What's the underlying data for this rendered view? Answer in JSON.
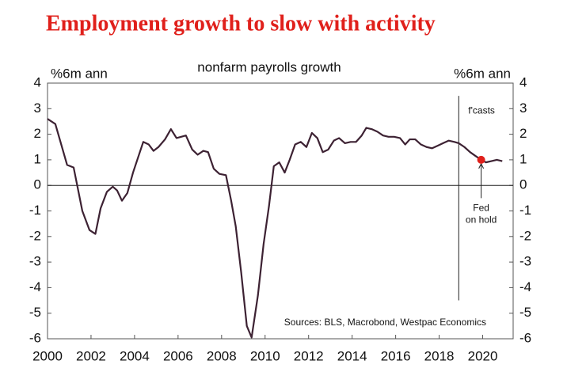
{
  "chart_data": {
    "type": "line",
    "title": "Employment growth to slow with activity",
    "subtitle": "nonfarm payrolls growth",
    "ylabel": "%6m ann",
    "y2label": "%6m ann",
    "source": "Sources: BLS, Macrobond, Westpac Economics",
    "x": [
      2000.0,
      2000.36,
      2000.9,
      2001.2,
      2001.6,
      2001.93,
      2002.2,
      2002.44,
      2002.73,
      2003.0,
      2003.2,
      2003.42,
      2003.67,
      2003.93,
      2004.4,
      2004.65,
      2004.87,
      2005.1,
      2005.4,
      2005.67,
      2005.93,
      2006.36,
      2006.65,
      2006.9,
      2007.16,
      2007.38,
      2007.64,
      2007.9,
      2008.2,
      2008.44,
      2008.65,
      2008.9,
      2009.16,
      2009.38,
      2009.67,
      2009.93,
      2010.18,
      2010.4,
      2010.65,
      2010.9,
      2011.13,
      2011.38,
      2011.64,
      2011.9,
      2012.15,
      2012.4,
      2012.65,
      2012.9,
      2013.16,
      2013.4,
      2013.67,
      2013.93,
      2014.18,
      2014.44,
      2014.65,
      2014.9,
      2015.16,
      2015.42,
      2015.67,
      2015.93,
      2016.2,
      2016.44,
      2016.65,
      2016.9,
      2017.16,
      2017.42,
      2017.67,
      2017.93,
      2018.18,
      2018.44,
      2018.7,
      2018.9,
      2019.16,
      2019.42,
      2019.67,
      2019.93,
      2020.15,
      2020.4,
      2020.65,
      2020.9
    ],
    "series": [
      {
        "name": "nonfarm payrolls growth",
        "color": "#3d2233",
        "values": [
          2.6,
          2.4,
          0.8,
          0.7,
          -1.0,
          -1.75,
          -1.9,
          -0.9,
          -0.25,
          -0.05,
          -0.2,
          -0.6,
          -0.3,
          0.5,
          1.7,
          1.6,
          1.35,
          1.5,
          1.8,
          2.2,
          1.85,
          1.95,
          1.4,
          1.2,
          1.35,
          1.3,
          0.65,
          0.45,
          0.4,
          -0.6,
          -1.6,
          -3.4,
          -5.5,
          -5.95,
          -4.3,
          -2.3,
          -0.8,
          0.75,
          0.9,
          0.5,
          1.0,
          1.6,
          1.7,
          1.5,
          2.05,
          1.85,
          1.3,
          1.4,
          1.75,
          1.85,
          1.65,
          1.7,
          1.7,
          1.95,
          2.25,
          2.2,
          2.1,
          1.95,
          1.9,
          1.9,
          1.85,
          1.6,
          1.8,
          1.8,
          1.6,
          1.5,
          1.45,
          1.55,
          1.65,
          1.75,
          1.7,
          1.65,
          1.5,
          1.3,
          1.15,
          1.0,
          0.9,
          0.95,
          1.0,
          0.95
        ]
      }
    ],
    "xlim": [
      2000,
      2021.4
    ],
    "xticks": [
      2000,
      2002,
      2004,
      2006,
      2008,
      2010,
      2012,
      2014,
      2016,
      2018,
      2020
    ],
    "ylim": [
      -6,
      4
    ],
    "yticks": [
      -6,
      -5,
      -4,
      -3,
      -2,
      -1,
      0,
      1,
      2,
      3,
      4
    ],
    "y2lim": [
      -6,
      4
    ],
    "y2ticks": [
      -6,
      -5,
      -4,
      -3,
      -2,
      -1,
      0,
      1,
      2,
      3,
      4
    ],
    "forecast_line": {
      "x": 2018.9,
      "y": [
        -4.5,
        3.5
      ],
      "label": "f'casts"
    },
    "highlight": {
      "x": 2019.93,
      "y": 1.0,
      "color": "#e0201b",
      "label": [
        "Fed",
        "on hold"
      ]
    }
  }
}
